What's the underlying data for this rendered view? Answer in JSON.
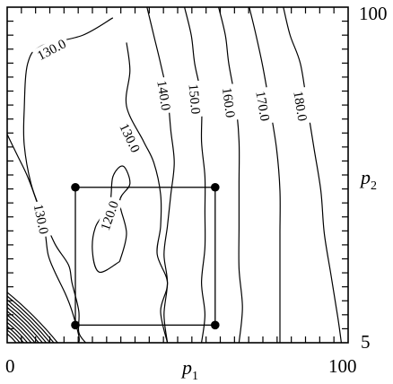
{
  "chart_data": {
    "type": "contour",
    "title": "",
    "x": {
      "label": "p",
      "label_subscript": "1",
      "range": [
        0,
        100
      ],
      "tick_labels": [
        "0",
        "100"
      ]
    },
    "y": {
      "label": "p",
      "label_subscript": "2",
      "range": [
        5,
        100
      ],
      "tick_labels": [
        "5",
        "100"
      ]
    },
    "contour_levels": [
      "120.0",
      "130.0",
      "130.0",
      "130.0",
      "140.0",
      "150.0",
      "160.0",
      "170.0",
      "180.0"
    ],
    "contours": [
      {
        "level": 120.0,
        "label": "120.0",
        "label_at": [
          30,
          41
        ],
        "points": [
          [
            33,
            28
          ],
          [
            27,
            25
          ],
          [
            25,
            31
          ],
          [
            26,
            38
          ],
          [
            30,
            44
          ],
          [
            31,
            52
          ],
          [
            34,
            55
          ],
          [
            36,
            50
          ],
          [
            33,
            45
          ],
          [
            35,
            36
          ],
          [
            33,
            28
          ]
        ]
      },
      {
        "level": 130.0,
        "label": "130.0",
        "label_at": [
          36,
          63
        ],
        "points": [
          [
            35,
            90
          ],
          [
            36,
            82
          ],
          [
            35,
            72
          ],
          [
            40,
            62
          ],
          [
            43,
            56
          ],
          [
            45,
            47
          ],
          [
            45,
            38
          ],
          [
            44,
            30
          ],
          [
            47,
            22
          ],
          [
            45,
            14
          ],
          [
            47,
            5
          ]
        ]
      },
      {
        "level": 130.0,
        "label": "130.0",
        "label_at": [
          13,
          88
        ],
        "points": [
          [
            31,
            97
          ],
          [
            22,
            92
          ],
          [
            10,
            89
          ],
          [
            6,
            84
          ],
          [
            5,
            71
          ],
          [
            5,
            61
          ],
          [
            7,
            50
          ],
          [
            10,
            42
          ],
          [
            14,
            33
          ],
          [
            18,
            27
          ],
          [
            19,
            22
          ],
          [
            21,
            14
          ],
          [
            21,
            8
          ],
          [
            23,
            5
          ]
        ]
      },
      {
        "level": 130.0,
        "label": "130.0",
        "label_at": [
          10,
          40
        ],
        "points": [
          [
            0,
            64
          ],
          [
            3,
            58
          ],
          [
            6,
            52
          ],
          [
            9,
            44
          ],
          [
            11,
            37
          ],
          [
            12,
            30
          ],
          [
            14,
            25
          ],
          [
            17,
            19
          ],
          [
            19,
            14
          ],
          [
            21,
            7
          ],
          [
            21,
            5
          ]
        ]
      },
      {
        "level": 140.0,
        "label": "140.0",
        "label_at": [
          46,
          75
        ],
        "points": [
          [
            41,
            100
          ],
          [
            43,
            92
          ],
          [
            45,
            84
          ],
          [
            47,
            75
          ],
          [
            48,
            65
          ],
          [
            49,
            56
          ],
          [
            48,
            47
          ],
          [
            47,
            38
          ],
          [
            46,
            30
          ],
          [
            47,
            22
          ],
          [
            46,
            13
          ],
          [
            47,
            5
          ]
        ]
      },
      {
        "level": 150.0,
        "label": "150.0",
        "label_at": [
          55,
          74
        ],
        "points": [
          [
            52,
            100
          ],
          [
            54,
            92
          ],
          [
            55,
            84
          ],
          [
            57,
            74
          ],
          [
            57,
            62
          ],
          [
            58,
            52
          ],
          [
            58,
            42
          ],
          [
            58,
            32
          ],
          [
            57,
            22
          ],
          [
            58,
            13
          ],
          [
            57,
            5
          ]
        ]
      },
      {
        "level": 160.0,
        "label": "160.0",
        "label_at": [
          65,
          73
        ],
        "points": [
          [
            62,
            100
          ],
          [
            64,
            92
          ],
          [
            65,
            84
          ],
          [
            67,
            73
          ],
          [
            68,
            62
          ],
          [
            68,
            50
          ],
          [
            68,
            38
          ],
          [
            68,
            26
          ],
          [
            69,
            15
          ],
          [
            68,
            5
          ]
        ]
      },
      {
        "level": 170.0,
        "label": "170.0",
        "label_at": [
          75,
          72
        ],
        "points": [
          [
            71,
            100
          ],
          [
            73,
            92
          ],
          [
            75,
            83
          ],
          [
            77,
            72
          ],
          [
            79,
            60
          ],
          [
            80,
            48
          ],
          [
            80,
            36
          ],
          [
            80,
            24
          ],
          [
            80,
            13
          ],
          [
            80,
            5
          ]
        ]
      },
      {
        "level": 180.0,
        "label": "180.0",
        "label_at": [
          86,
          72
        ],
        "points": [
          [
            81,
            100
          ],
          [
            83,
            92
          ],
          [
            86,
            84
          ],
          [
            88,
            72
          ],
          [
            90,
            60
          ],
          [
            92,
            48
          ],
          [
            93,
            36
          ],
          [
            95,
            24
          ],
          [
            97,
            12
          ],
          [
            98,
            5
          ]
        ]
      }
    ],
    "boundary_region": {
      "p1_range": [
        20,
        61
      ],
      "p2_range": [
        10,
        49
      ]
    },
    "vertices": [
      {
        "p1": 20,
        "p2": 49
      },
      {
        "p1": 61,
        "p2": 49
      },
      {
        "p1": 20,
        "p2": 10
      },
      {
        "p1": 61,
        "p2": 10
      }
    ],
    "grid": false,
    "legend": "none"
  }
}
